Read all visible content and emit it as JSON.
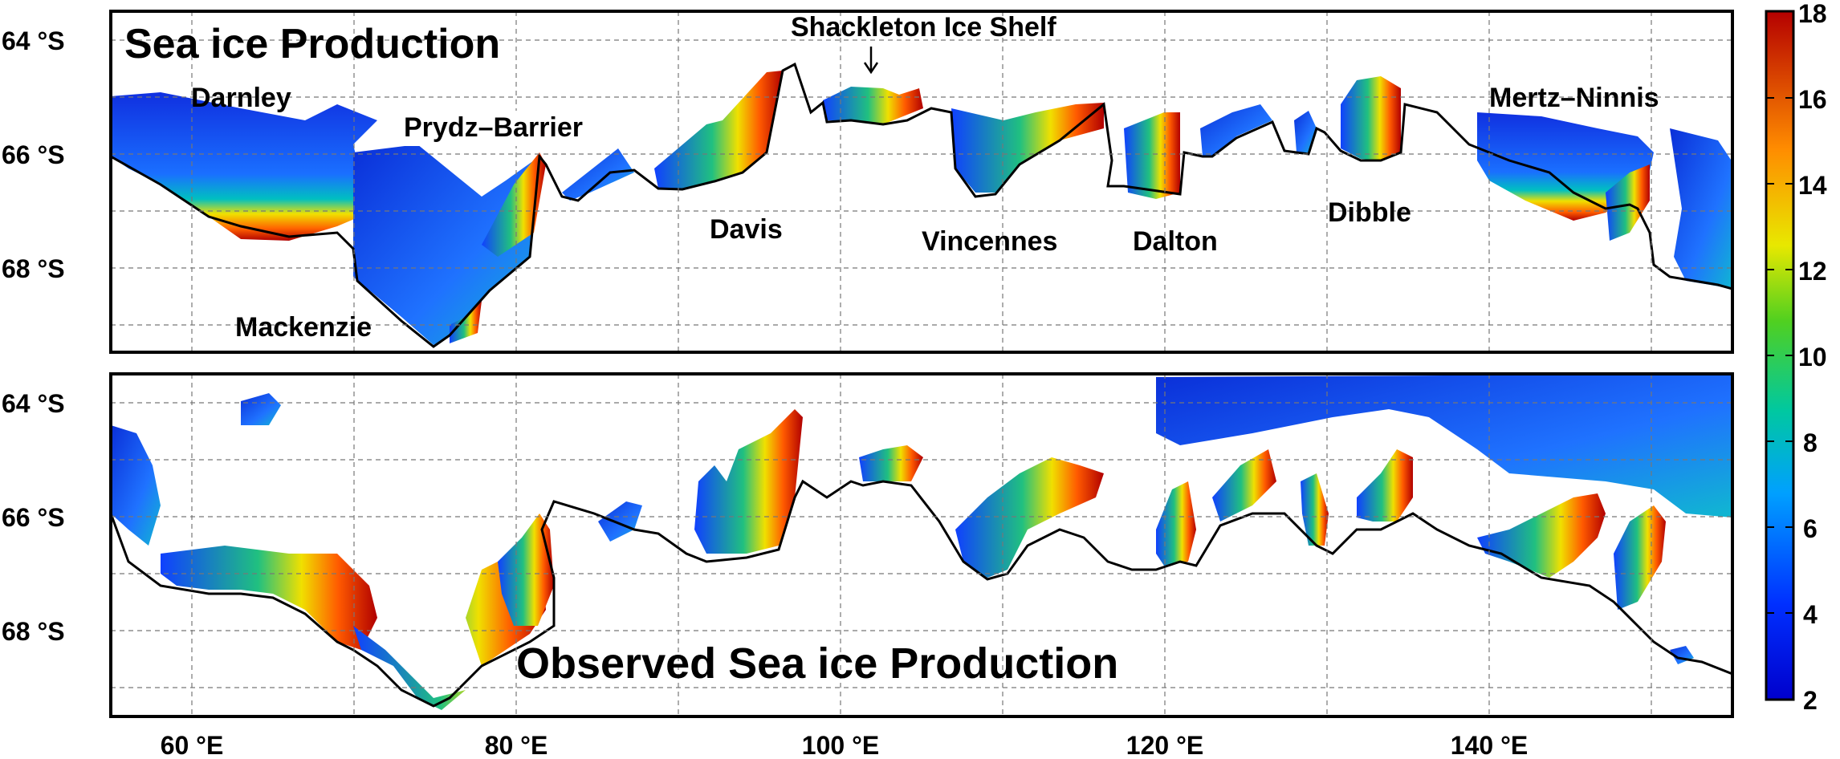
{
  "panels": [
    {
      "title": "Sea ice Production",
      "region_labels": [
        {
          "key": "darnley",
          "text": "Darnley"
        },
        {
          "key": "prydz",
          "text": "Prydz–Barrier"
        },
        {
          "key": "mackenzie",
          "text": "Mackenzie"
        },
        {
          "key": "shackleton",
          "text": "Shackleton Ice Shelf"
        },
        {
          "key": "davis",
          "text": "Davis"
        },
        {
          "key": "vincennes",
          "text": "Vincennes"
        },
        {
          "key": "dalton",
          "text": "Dalton"
        },
        {
          "key": "dibble",
          "text": "Dibble"
        },
        {
          "key": "mertz",
          "text": "Mertz–Ninnis"
        }
      ]
    },
    {
      "title": "Observed Sea ice Production",
      "region_labels": []
    }
  ],
  "axes": {
    "lat_ticks": [
      "64 °S",
      "66 °S",
      "68 °S"
    ],
    "lon_ticks": [
      "60 °E",
      "80 °E",
      "100 °E",
      "120 °E",
      "140 °E"
    ],
    "lon_range": [
      55,
      155
    ],
    "lat_range": [
      -69.5,
      -63.5
    ]
  },
  "colorbar": {
    "ticks": [
      "2",
      "4",
      "6",
      "8",
      "10",
      "12",
      "14",
      "16",
      "18"
    ],
    "range": [
      2,
      18
    ],
    "colormap": "jet"
  },
  "colors": {
    "coastline": "#000000",
    "grid": "#777777",
    "frame": "#000000"
  }
}
